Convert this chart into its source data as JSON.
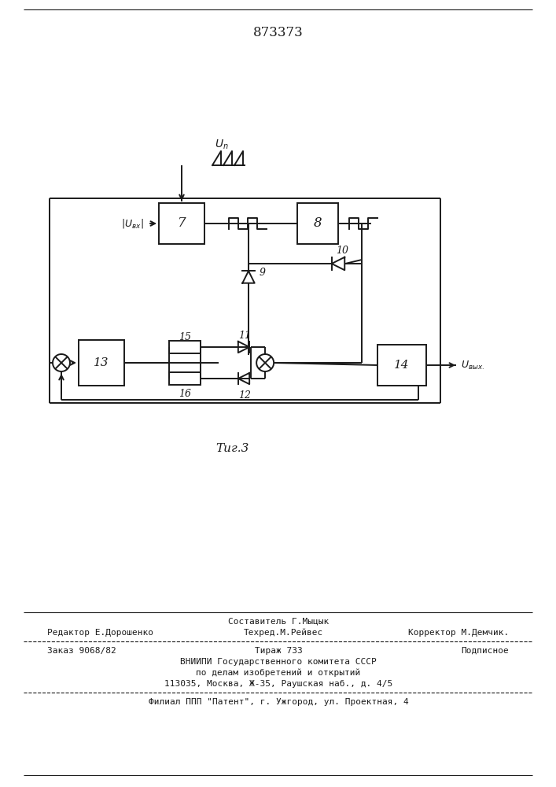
{
  "title": "873373",
  "fig_label": "Τиг.3",
  "background_color": "#ffffff",
  "line_color": "#1a1a1a",
  "footer": {
    "line1_center": "Составитель Г.Мыцык",
    "line2_left": "Редактор Е.Дорошенко",
    "line2_center": "Техред.М.Рейвес",
    "line2_right": "Корректор М.Демчик.",
    "line3_left": "Заказ 9068/82",
    "line3_center": "Тираж 733",
    "line3_right": "Подписное",
    "line4": "ВНИИПИ Государственного комитета СССР",
    "line5": "по делам изобретений и открытий",
    "line6": "113035, Москва, Ж-35, Раушская наб., д. 4/5",
    "line7": "Филиал ППП \"Патент\", г. Ужгород, ул. Проектная, 4"
  }
}
